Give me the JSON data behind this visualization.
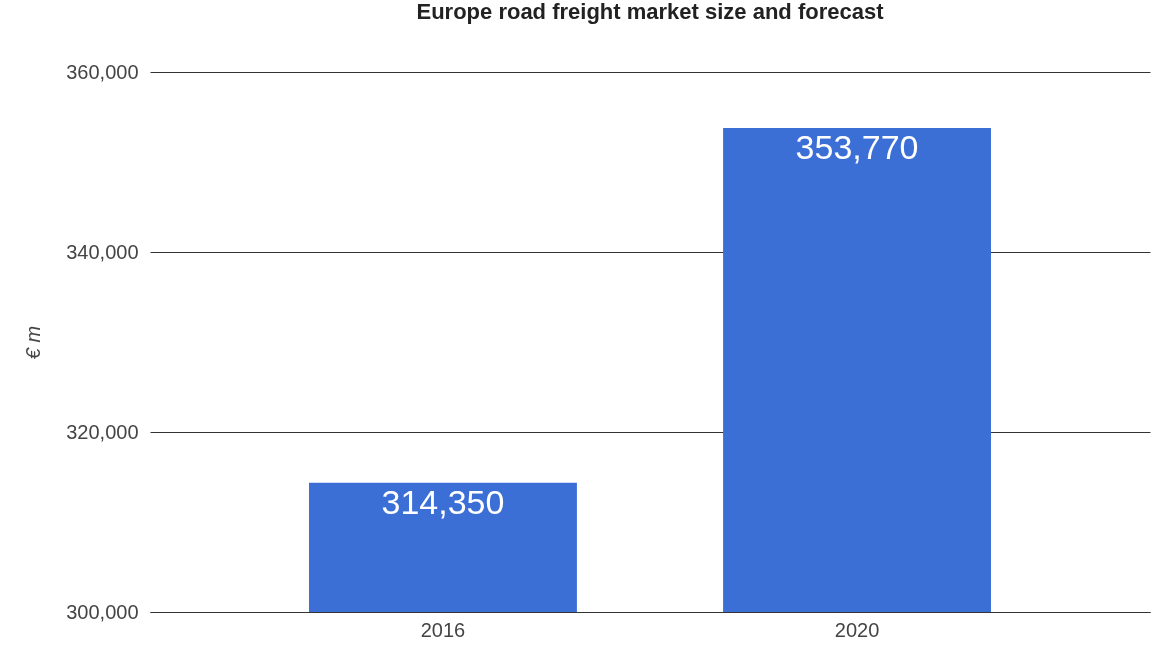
{
  "chart_data": {
    "type": "bar",
    "title": "Europe road freight market size and forecast",
    "ylabel": "€ m",
    "categories": [
      "2016",
      "2020"
    ],
    "values": [
      314350,
      353770
    ],
    "value_labels": [
      "314,350",
      "353,770"
    ],
    "color": "#3c6fd6",
    "ylim": [
      300000,
      360000
    ],
    "yticks": [
      {
        "value": 300000,
        "label": "300,000"
      },
      {
        "value": 320000,
        "label": "320,000"
      },
      {
        "value": 340000,
        "label": "340,000"
      },
      {
        "value": 360000,
        "label": "360,000"
      }
    ],
    "grid": "y"
  }
}
